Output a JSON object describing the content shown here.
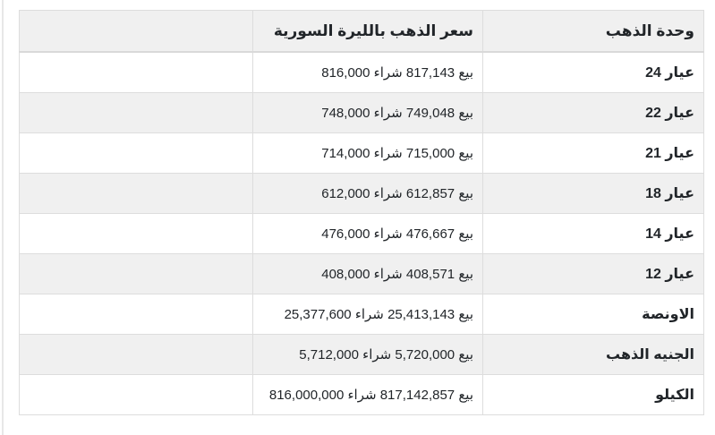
{
  "table": {
    "headers": {
      "unit": "وحدة الذهب",
      "price": "سعر الذهب بالليرة السورية",
      "extra": ""
    },
    "labels": {
      "sell": "بيع",
      "buy": "شراء"
    },
    "rows": [
      {
        "unit": "عيار 24",
        "sell": "817,143",
        "buy": "816,000"
      },
      {
        "unit": "عيار 22",
        "sell": "749,048",
        "buy": "748,000"
      },
      {
        "unit": "عيار 21",
        "sell": "715,000",
        "buy": "714,000"
      },
      {
        "unit": "عيار 18",
        "sell": "612,857",
        "buy": "612,000"
      },
      {
        "unit": "عيار 14",
        "sell": "476,667",
        "buy": "476,000"
      },
      {
        "unit": "عيار 12",
        "sell": "408,571",
        "buy": "408,000"
      },
      {
        "unit": "الاونصة",
        "sell": "25,413,143",
        "buy": "25,377,600"
      },
      {
        "unit": "الجنيه الذهب",
        "sell": "5,720,000",
        "buy": "5,712,000"
      },
      {
        "unit": "الكيلو",
        "sell": "817,142,857",
        "buy": "816,000,000"
      }
    ],
    "colors": {
      "stripe": "#f0f0f0",
      "border": "#dddddd",
      "text": "#212529",
      "background": "#ffffff"
    }
  }
}
